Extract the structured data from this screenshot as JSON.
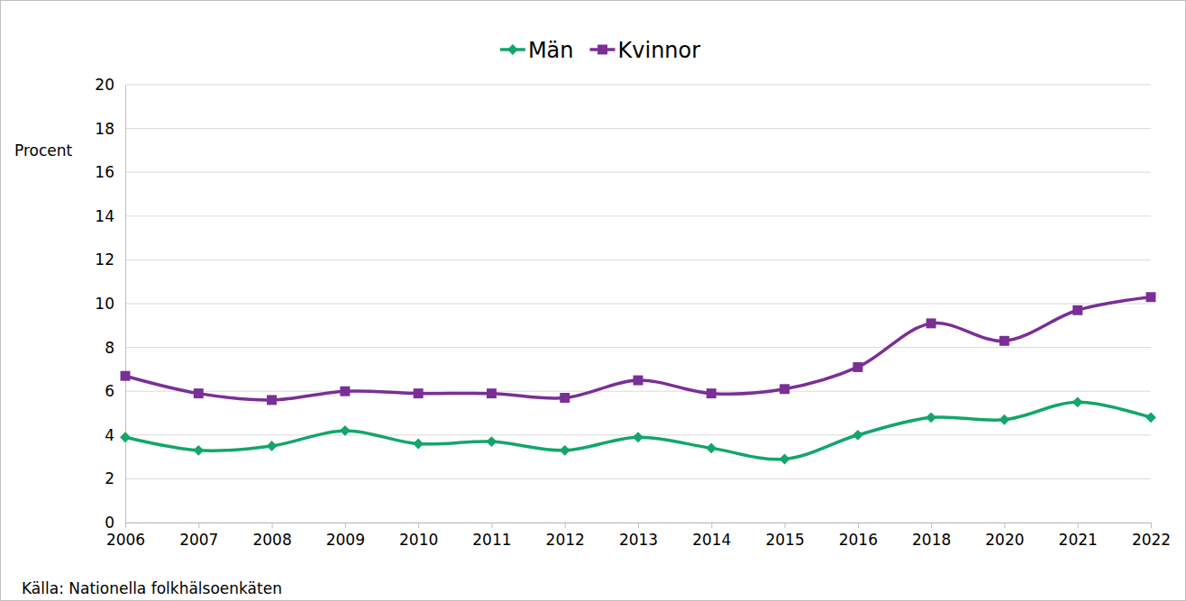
{
  "chart_data": {
    "type": "line",
    "ylabel": "Procent",
    "source": "Källa: Nationella folkhälsoenkäten",
    "categories": [
      "2006",
      "2007",
      "2008",
      "2009",
      "2010",
      "2011",
      "2012",
      "2013",
      "2014",
      "2015",
      "2016",
      "2018",
      "2020",
      "2021",
      "2022"
    ],
    "series": [
      {
        "name": "Män",
        "color": "#12a66b",
        "marker": "diamond",
        "line_style": "smooth",
        "values": [
          3.9,
          3.3,
          3.5,
          4.2,
          3.6,
          3.7,
          3.3,
          3.9,
          3.4,
          2.9,
          4.0,
          4.8,
          4.7,
          5.5,
          4.8
        ]
      },
      {
        "name": "Kvinnor",
        "color": "#7a2f96",
        "marker": "square",
        "line_style": "smooth",
        "values": [
          6.7,
          5.9,
          5.6,
          6.0,
          5.9,
          5.9,
          5.7,
          6.5,
          5.9,
          6.1,
          7.1,
          9.1,
          8.3,
          9.7,
          10.3
        ]
      }
    ],
    "ylim": [
      0,
      20
    ],
    "yticks": [
      0,
      2,
      4,
      6,
      8,
      10,
      12,
      14,
      16,
      18,
      20
    ],
    "grid": true,
    "legend": "top"
  }
}
